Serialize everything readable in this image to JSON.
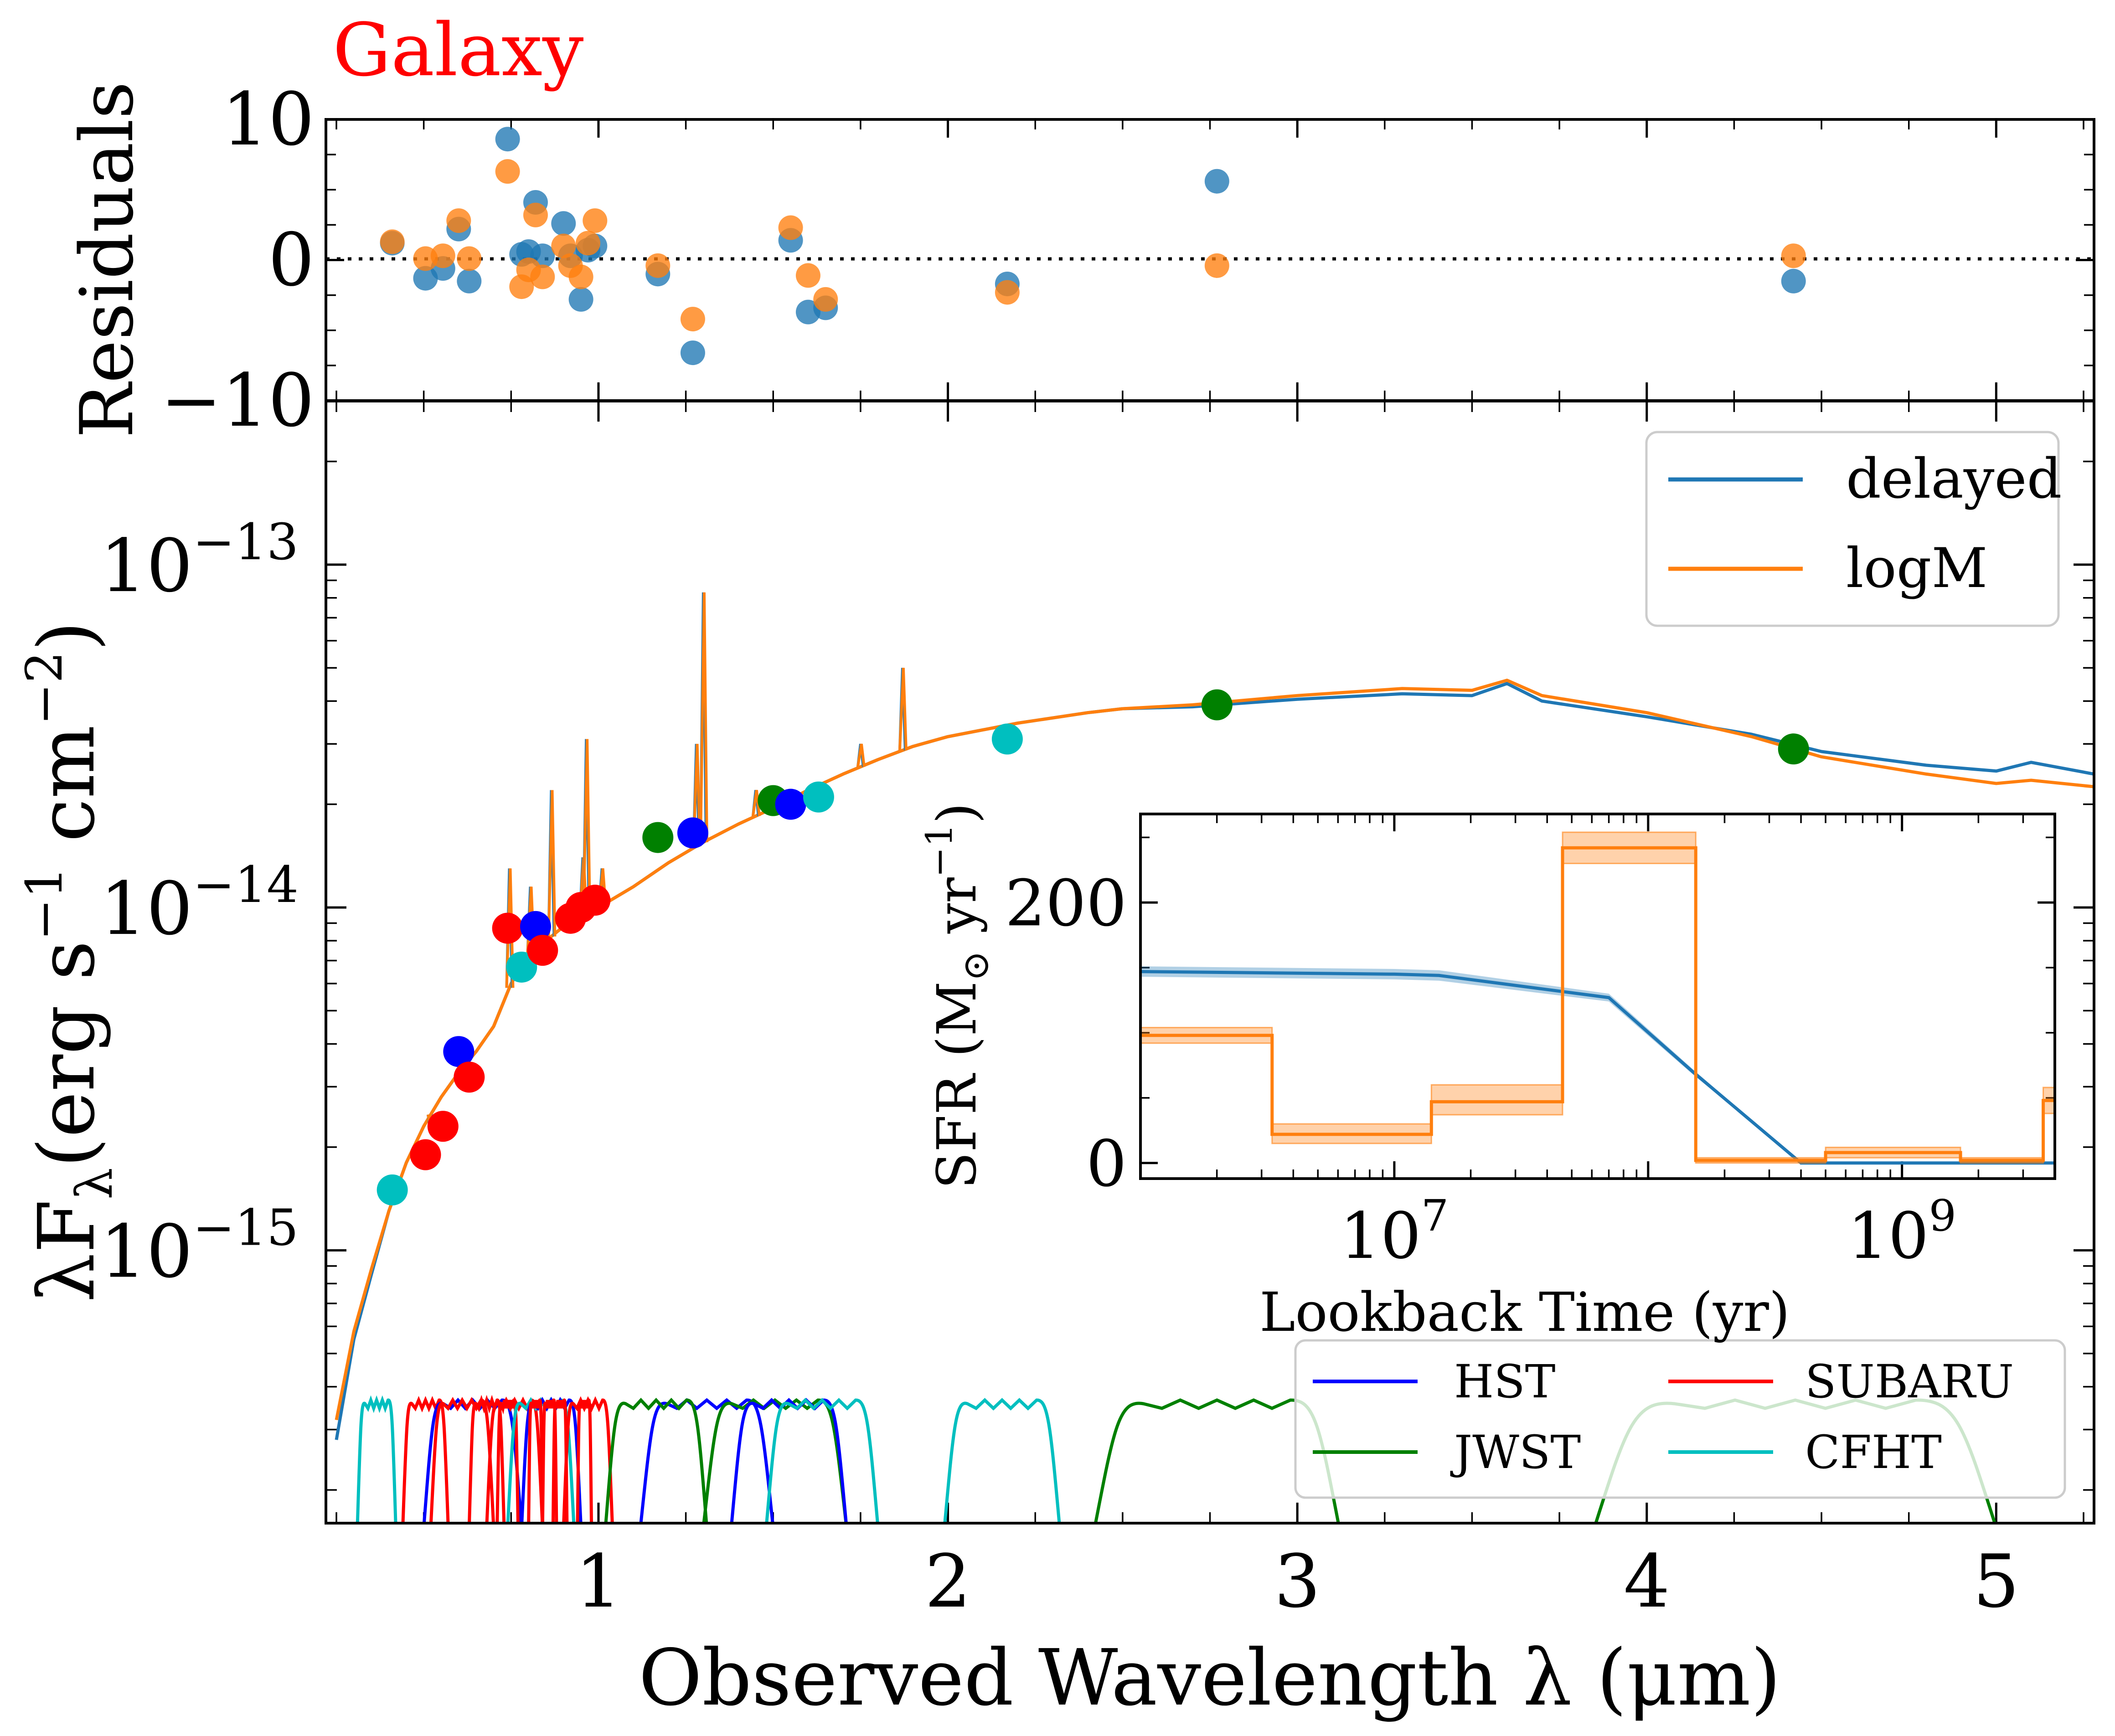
{
  "colors": {
    "delayed": "#1f77b4",
    "logM": "#ff7f0e",
    "galaxy_title": "#ff0000",
    "HST": "#0000ff",
    "JWST": "#008000",
    "SUBARU": "#ff0000",
    "CFHT": "#00bfbf"
  },
  "chart_data": [
    {
      "id": "residuals",
      "type": "scatter",
      "title": "Galaxy",
      "xlabel": "",
      "ylabel": "Residuals",
      "xlim": [
        0.22,
        5.28
      ],
      "ylim": [
        -10,
        10
      ],
      "yticks": [
        10,
        0,
        -10
      ],
      "ytick_labels": [
        "10",
        "0",
        "−10"
      ],
      "reference_line": {
        "y": 0,
        "style": "dotted"
      },
      "series": [
        {
          "name": "delayed",
          "x": [
            0.41,
            0.505,
            0.555,
            0.6,
            0.63,
            0.74,
            0.78,
            0.8,
            0.82,
            0.84,
            0.9,
            0.92,
            0.95,
            0.97,
            0.99,
            1.17,
            1.27,
            1.55,
            1.6,
            1.65,
            2.17,
            2.77,
            4.42
          ],
          "y": [
            1.2,
            -1.3,
            -0.6,
            2.2,
            -1.5,
            8.6,
            0.4,
            0.6,
            4.1,
            0.3,
            2.6,
            0.3,
            -2.8,
            0.7,
            1.0,
            -1.0,
            -6.6,
            1.4,
            -3.7,
            -3.4,
            -1.7,
            5.6,
            -1.5
          ]
        },
        {
          "name": "logM",
          "x": [
            0.41,
            0.505,
            0.555,
            0.6,
            0.63,
            0.74,
            0.78,
            0.8,
            0.82,
            0.84,
            0.9,
            0.92,
            0.95,
            0.97,
            0.99,
            1.17,
            1.27,
            1.55,
            1.6,
            1.65,
            2.17,
            2.77,
            4.42
          ],
          "y": [
            1.3,
            0.1,
            0.3,
            2.8,
            0.1,
            6.3,
            -1.9,
            -0.7,
            3.2,
            -1.2,
            1.0,
            -0.4,
            -1.2,
            1.2,
            2.8,
            -0.4,
            -4.2,
            2.3,
            -1.1,
            -2.8,
            -2.3,
            -0.4,
            0.3
          ]
        }
      ]
    },
    {
      "id": "sed",
      "type": "line",
      "xlabel": "Observed Wavelength λ (μm)",
      "ylabel": "λFλ(erg s−1 cm−2)",
      "xscale": "linear",
      "yscale": "log",
      "xlim": [
        0.22,
        5.28
      ],
      "ylim": [
        1.6e-16,
        3e-13
      ],
      "xticks": [
        1,
        2,
        3,
        4,
        5
      ],
      "xtick_labels": [
        "1",
        "2",
        "3",
        "4",
        "5"
      ],
      "yticks": [
        1e-13,
        1e-14,
        1e-15
      ],
      "ytick_labels": [
        {
          "base": "10",
          "exp": "−13"
        },
        {
          "base": "10",
          "exp": "−14"
        },
        {
          "base": "10",
          "exp": "−15"
        }
      ],
      "legend": {
        "position": "top-right",
        "entries": [
          "delayed",
          "logM"
        ]
      },
      "series": [
        {
          "name": "delayed",
          "x": [
            0.25,
            0.3,
            0.35,
            0.4,
            0.45,
            0.5,
            0.55,
            0.6,
            0.65,
            0.7,
            0.75,
            0.8,
            0.85,
            0.9,
            0.95,
            1.0,
            1.1,
            1.2,
            1.3,
            1.4,
            1.5,
            1.6,
            1.7,
            1.8,
            1.9,
            2.0,
            2.2,
            2.4,
            2.5,
            2.7,
            3.0,
            3.3,
            3.5,
            3.6,
            3.7,
            4.0,
            4.3,
            4.5,
            4.8,
            5.0,
            5.1,
            5.28
          ],
          "y": [
            2.8e-16,
            5.5e-16,
            8.5e-16,
            1.3e-15,
            1.8e-15,
            2.3e-15,
            2.8e-15,
            3.3e-15,
            3.8e-15,
            4.5e-15,
            6e-15,
            7.3e-15,
            8e-15,
            8.8e-15,
            9.5e-15,
            1e-14,
            1.15e-14,
            1.35e-14,
            1.55e-14,
            1.75e-14,
            1.95e-14,
            2.2e-14,
            2.45e-14,
            2.7e-14,
            2.95e-14,
            3.15e-14,
            3.45e-14,
            3.7e-14,
            3.8e-14,
            3.85e-14,
            4.05e-14,
            4.2e-14,
            4.15e-14,
            4.5e-14,
            4e-14,
            3.6e-14,
            3.2e-14,
            2.85e-14,
            2.6e-14,
            2.5e-14,
            2.65e-14,
            2.45e-14
          ]
        },
        {
          "name": "logM",
          "x": [
            0.25,
            0.3,
            0.35,
            0.4,
            0.45,
            0.5,
            0.55,
            0.6,
            0.65,
            0.7,
            0.75,
            0.8,
            0.85,
            0.9,
            0.95,
            1.0,
            1.1,
            1.2,
            1.3,
            1.4,
            1.5,
            1.6,
            1.7,
            1.8,
            1.9,
            2.0,
            2.2,
            2.4,
            2.5,
            2.7,
            3.0,
            3.3,
            3.5,
            3.6,
            3.7,
            4.0,
            4.3,
            4.5,
            4.8,
            5.0,
            5.1,
            5.28
          ],
          "y": [
            3.2e-16,
            5.8e-16,
            8.8e-16,
            1.3e-15,
            1.8e-15,
            2.3e-15,
            2.8e-15,
            3.3e-15,
            3.8e-15,
            4.5e-15,
            6e-15,
            7.3e-15,
            8e-15,
            8.8e-15,
            9.5e-15,
            1e-14,
            1.15e-14,
            1.35e-14,
            1.55e-14,
            1.75e-14,
            1.95e-14,
            2.2e-14,
            2.45e-14,
            2.7e-14,
            2.95e-14,
            3.15e-14,
            3.45e-14,
            3.7e-14,
            3.8e-14,
            3.9e-14,
            4.15e-14,
            4.35e-14,
            4.3e-14,
            4.6e-14,
            4.15e-14,
            3.7e-14,
            3.15e-14,
            2.75e-14,
            2.45e-14,
            2.3e-14,
            2.35e-14,
            2.25e-14
          ]
        }
      ],
      "emission_lines": [
        {
          "x": 0.52,
          "y": 2.2e-15
        },
        {
          "x": 0.745,
          "y": 1.3e-14
        },
        {
          "x": 0.805,
          "y": 1.15e-14
        },
        {
          "x": 0.865,
          "y": 2.2e-14
        },
        {
          "x": 0.955,
          "y": 1.4e-14
        },
        {
          "x": 0.965,
          "y": 3.1e-14
        },
        {
          "x": 1.01,
          "y": 1.3e-14
        },
        {
          "x": 1.28,
          "y": 3e-14
        },
        {
          "x": 1.3,
          "y": 8.3e-14
        },
        {
          "x": 1.45,
          "y": 2.2e-14
        },
        {
          "x": 1.75,
          "y": 3e-14
        },
        {
          "x": 1.87,
          "y": 5e-14
        }
      ],
      "photometry": [
        {
          "survey": "CFHT",
          "x": 0.41,
          "y": 1.5e-15
        },
        {
          "survey": "SUBARU",
          "x": 0.505,
          "y": 1.9e-15
        },
        {
          "survey": "SUBARU",
          "x": 0.555,
          "y": 2.3e-15
        },
        {
          "survey": "HST",
          "x": 0.6,
          "y": 3.8e-15
        },
        {
          "survey": "SUBARU",
          "x": 0.63,
          "y": 3.2e-15
        },
        {
          "survey": "SUBARU",
          "x": 0.74,
          "y": 8.7e-15
        },
        {
          "survey": "CFHT",
          "x": 0.78,
          "y": 6.7e-15
        },
        {
          "survey": "HST",
          "x": 0.82,
          "y": 8.8e-15
        },
        {
          "survey": "SUBARU",
          "x": 0.84,
          "y": 7.5e-15
        },
        {
          "survey": "SUBARU",
          "x": 0.92,
          "y": 9.3e-15
        },
        {
          "survey": "SUBARU",
          "x": 0.95,
          "y": 1e-14
        },
        {
          "survey": "SUBARU",
          "x": 0.99,
          "y": 1.05e-14
        },
        {
          "survey": "JWST",
          "x": 1.17,
          "y": 1.6e-14
        },
        {
          "survey": "HST",
          "x": 1.27,
          "y": 1.65e-14
        },
        {
          "survey": "JWST",
          "x": 1.5,
          "y": 2.05e-14
        },
        {
          "survey": "HST",
          "x": 1.55,
          "y": 2e-14
        },
        {
          "survey": "CFHT",
          "x": 1.63,
          "y": 2.1e-14
        },
        {
          "survey": "CFHT",
          "x": 2.17,
          "y": 3.1e-14
        },
        {
          "survey": "JWST",
          "x": 2.77,
          "y": 3.9e-14
        },
        {
          "survey": "JWST",
          "x": 4.42,
          "y": 2.9e-14
        }
      ],
      "filter_legend": {
        "position": "bottom-right",
        "entries": [
          "HST",
          "SUBARU",
          "JWST",
          "CFHT"
        ]
      },
      "filter_curves": [
        {
          "survey": "CFHT",
          "x": [
            0.31,
            0.42
          ]
        },
        {
          "survey": "SUBARU",
          "x": [
            0.44,
            0.57
          ]
        },
        {
          "survey": "HST",
          "x": [
            0.5,
            0.78
          ]
        },
        {
          "survey": "SUBARU",
          "x": [
            0.52,
            0.7
          ]
        },
        {
          "survey": "SUBARU",
          "x": [
            0.63,
            0.73
          ]
        },
        {
          "survey": "SUBARU",
          "x": [
            0.68,
            0.84
          ]
        },
        {
          "survey": "SUBARU",
          "x": [
            0.71,
            0.77
          ]
        },
        {
          "survey": "CFHT",
          "x": [
            0.74,
            0.93
          ]
        },
        {
          "survey": "HST",
          "x": [
            0.78,
            0.95
          ]
        },
        {
          "survey": "SUBARU",
          "x": [
            0.8,
            0.84
          ]
        },
        {
          "survey": "SUBARU",
          "x": [
            0.84,
            0.88
          ]
        },
        {
          "survey": "SUBARU",
          "x": [
            0.87,
            0.91
          ]
        },
        {
          "survey": "SUBARU",
          "x": [
            0.9,
            1.04
          ]
        },
        {
          "survey": "SUBARU",
          "x": [
            0.94,
            0.98
          ]
        },
        {
          "survey": "HST",
          "x": [
            1.12,
            1.5
          ]
        },
        {
          "survey": "JWST",
          "x": [
            1.02,
            1.31
          ]
        },
        {
          "survey": "JWST",
          "x": [
            1.3,
            1.71
          ]
        },
        {
          "survey": "HST",
          "x": [
            1.38,
            1.71
          ]
        },
        {
          "survey": "CFHT",
          "x": [
            1.48,
            1.8
          ]
        },
        {
          "survey": "CFHT",
          "x": [
            1.99,
            2.32
          ]
        },
        {
          "survey": "JWST",
          "x": [
            2.42,
            3.12
          ]
        },
        {
          "survey": "JWST",
          "x": [
            3.85,
            5.0
          ]
        }
      ]
    },
    {
      "id": "sfh_inset",
      "type": "line",
      "xlabel": "Lookback Time (yr)",
      "ylabel": "SFR (M⊙ yr−1)",
      "xscale": "log",
      "yscale": "linear",
      "xlim": [
        1000000.0,
        4000000000.0
      ],
      "ylim": [
        -12,
        268
      ],
      "xticks": [
        10000000.0,
        1000000000.0
      ],
      "xtick_labels": [
        {
          "base": "10",
          "exp": "7"
        },
        {
          "base": "10",
          "exp": "9"
        }
      ],
      "yticks": [
        0,
        200
      ],
      "ytick_labels": [
        "0",
        "200"
      ],
      "series": [
        {
          "name": "delayed",
          "x": [
            1000000.0,
            10000000.0,
            15000000.0,
            70000000.0,
            150000000.0,
            400000000.0,
            600000000.0,
            4000000000.0
          ],
          "y": [
            147,
            145,
            144,
            127,
            70,
            0,
            0,
            0
          ],
          "band": {
            "lower": [
              143,
              141,
              140,
              124,
              68,
              0,
              0,
              0
            ],
            "upper": [
              151,
              149,
              148,
              130,
              72,
              0,
              0,
              0
            ]
          }
        },
        {
          "name": "logM",
          "step_edges": [
            1000000.0,
            3300000.0,
            14000000.0,
            46000000.0,
            154000000.0,
            500000000.0,
            1700000000.0,
            3600000000.0,
            4000000000.0
          ],
          "values": [
            98,
            22,
            47,
            242,
            2,
            8,
            2,
            48
          ],
          "band_lower": [
            92,
            15,
            37,
            230,
            0,
            4,
            0,
            38
          ],
          "band_upper": [
            104,
            30,
            60,
            254,
            4,
            12,
            4,
            58
          ]
        }
      ]
    }
  ]
}
